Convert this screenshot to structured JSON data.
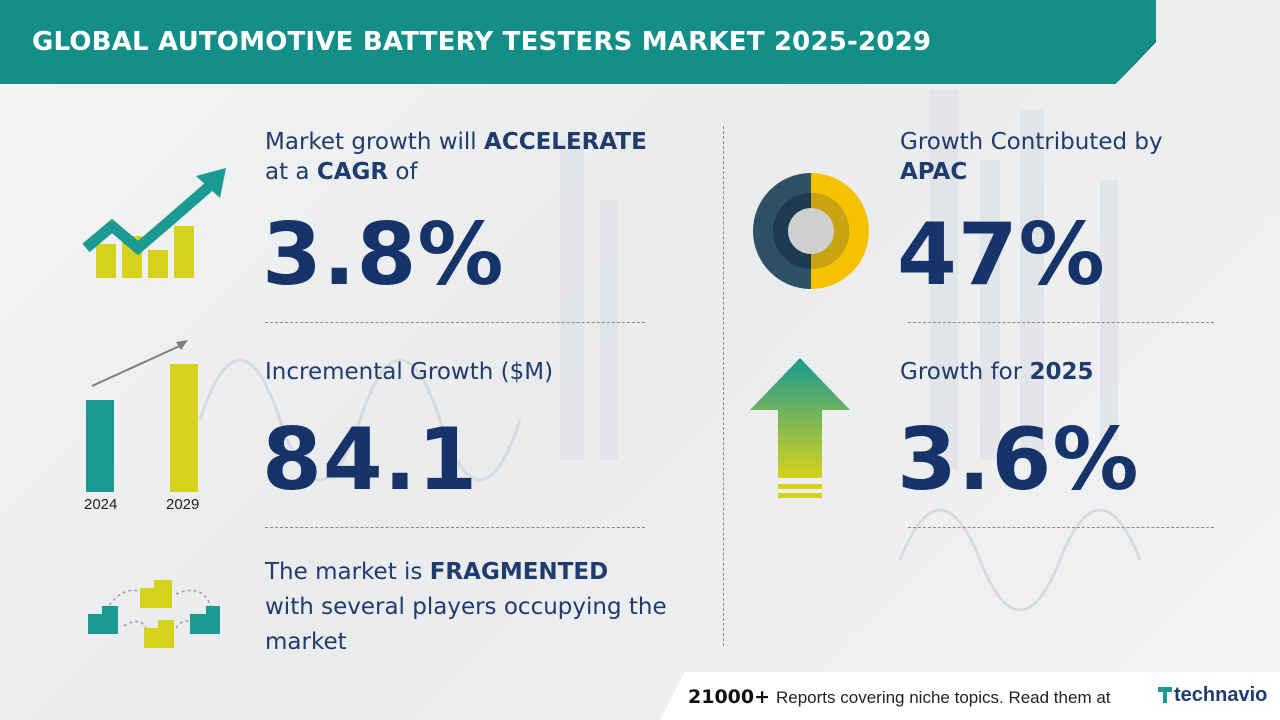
{
  "title": "GLOBAL AUTOMOTIVE BATTERY TESTERS MARKET 2025-2029",
  "cagr": {
    "line1_prefix": "Market growth will ",
    "line1_bold": "ACCELERATE",
    "line2_prefix": "at a ",
    "line2_bold": "CAGR",
    "line2_suffix": " of",
    "value": "3.8%"
  },
  "incremental": {
    "label": "Incremental Growth ($M)",
    "value": "84.1",
    "year_start": "2024",
    "year_end": "2029"
  },
  "fragmented": {
    "line1_prefix": "The market is ",
    "line1_bold": "FRAGMENTED",
    "line2": "with several players occupying the",
    "line3": "market"
  },
  "region": {
    "label": "Growth Contributed by",
    "name": "APAC",
    "value": "47%",
    "share": 0.47
  },
  "yoy": {
    "label_prefix": "Growth for ",
    "year": "2025",
    "value": "3.6%"
  },
  "footer": {
    "count": "21000+",
    "text": "Reports covering niche topics. Read them at",
    "brand": "technavio"
  },
  "colors": {
    "banner": "#148f87",
    "teal": "#1a9a92",
    "yellow": "#d6d21c",
    "navy": "#17346a",
    "donut_dark": "#2f5168",
    "donut_yellow": "#f6c200"
  }
}
